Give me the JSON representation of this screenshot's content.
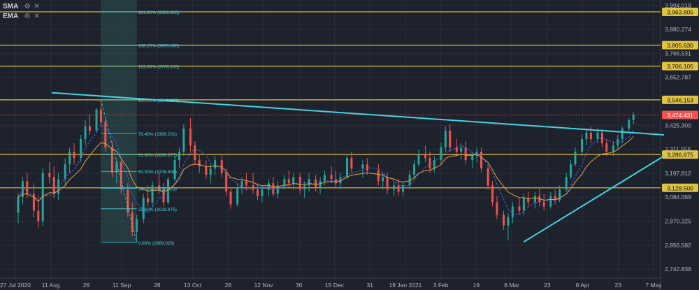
{
  "legend": {
    "items": [
      {
        "name": "SMA",
        "controls": "⚙ ✕"
      },
      {
        "name": "EMA",
        "controls": "⚙ ✕"
      }
    ]
  },
  "chart_data": {
    "type": "candlestick",
    "instrument_price_axis": "right",
    "ylim": [
      2700,
      4020
    ],
    "y_ticks": [
      "3,994.018",
      "3,880.274",
      "3,766.531",
      "3,652.787",
      "3,425.300",
      "3,311.556",
      "3,197.812",
      "3,084.069",
      "2,970.325",
      "2,856.582",
      "2,742.838"
    ],
    "x_ticks": [
      "27 Jul 2020",
      "11 Aug",
      "26",
      "11 Sep",
      "28",
      "13 Oct",
      "28",
      "12 Nov",
      "30",
      "15 Dec",
      "31",
      "19 Jan 2021",
      "3 Feb",
      "19",
      "8 Mar",
      "23",
      "8 Apr",
      "23",
      "7 May"
    ],
    "dates_range": [
      "2020-07-27",
      "2021-05-07"
    ],
    "colors": {
      "up": "#26a69a",
      "down": "#ef5350",
      "level": "#e0c341",
      "trend": "#44d3e0",
      "sma": "#4b5fd8",
      "ema": "#e0a040",
      "fib": "#44d3e0"
    },
    "horizontal_levels": [
      {
        "value": 3963.805,
        "label": "3,963.805"
      },
      {
        "value": 3805.63,
        "label": "3,805.630"
      },
      {
        "value": 3706.105,
        "label": "3,706.105"
      },
      {
        "value": 3546.153,
        "label": "3,546.153"
      },
      {
        "value": 3286.675,
        "label": "3,286.675"
      },
      {
        "value": 3128.5,
        "label": "3,128.500"
      }
    ],
    "current_price": {
      "value": 3474.431,
      "label": "3,474.431"
    },
    "fibonacci": [
      {
        "label": "161.80% (3963.805)",
        "value": 3963.805
      },
      {
        "label": "138.20% (3805.630)",
        "value": 3805.63
      },
      {
        "label": "123.60% (3706.105)",
        "value": 3706.105
      },
      {
        "label": "100.00% (3546.153)",
        "value": 3546.153
      },
      {
        "label": "76.40% (3386.201)",
        "value": 3386.201
      },
      {
        "label": "61.80% (3286.675)",
        "value": 3286.675
      },
      {
        "label": "50.00% (3206.699)",
        "value": 3206.699
      },
      {
        "label": "38.20% (3126.723)",
        "value": 3126.723
      },
      {
        "label": "23.60% (3028.975)",
        "value": 3028.975
      },
      {
        "label": "0.00% (2869.023)",
        "value": 2869.023
      }
    ],
    "trendlines": [
      {
        "from": [
          "2020-08-11",
          3580
        ],
        "to": [
          "2021-05-07",
          3380
        ]
      },
      {
        "from": [
          "2021-03-10",
          2872
        ],
        "to": [
          "2021-05-07",
          3280
        ]
      }
    ],
    "candles": [
      {
        "d": "2020-07-27",
        "o": 3010,
        "h": 3100,
        "l": 2960,
        "c": 3085
      },
      {
        "d": "2020-07-29",
        "o": 3085,
        "h": 3180,
        "l": 3050,
        "c": 3160
      },
      {
        "d": "2020-07-31",
        "o": 3160,
        "h": 3200,
        "l": 3080,
        "c": 3100
      },
      {
        "d": "2020-08-03",
        "o": 3100,
        "h": 3150,
        "l": 2990,
        "c": 3020
      },
      {
        "d": "2020-08-05",
        "o": 3020,
        "h": 3090,
        "l": 2940,
        "c": 2970
      },
      {
        "d": "2020-08-07",
        "o": 2970,
        "h": 3220,
        "l": 2950,
        "c": 3200
      },
      {
        "d": "2020-08-10",
        "o": 3200,
        "h": 3250,
        "l": 3150,
        "c": 3180
      },
      {
        "d": "2020-08-12",
        "o": 3180,
        "h": 3230,
        "l": 3080,
        "c": 3100
      },
      {
        "d": "2020-08-14",
        "o": 3100,
        "h": 3200,
        "l": 3070,
        "c": 3170
      },
      {
        "d": "2020-08-17",
        "o": 3170,
        "h": 3270,
        "l": 3140,
        "c": 3240
      },
      {
        "d": "2020-08-19",
        "o": 3240,
        "h": 3320,
        "l": 3200,
        "c": 3300
      },
      {
        "d": "2020-08-21",
        "o": 3300,
        "h": 3340,
        "l": 3240,
        "c": 3270
      },
      {
        "d": "2020-08-24",
        "o": 3270,
        "h": 3380,
        "l": 3250,
        "c": 3360
      },
      {
        "d": "2020-08-26",
        "o": 3360,
        "h": 3450,
        "l": 3330,
        "c": 3420
      },
      {
        "d": "2020-08-28",
        "o": 3420,
        "h": 3480,
        "l": 3380,
        "c": 3400
      },
      {
        "d": "2020-08-31",
        "o": 3400,
        "h": 3510,
        "l": 3390,
        "c": 3500
      },
      {
        "d": "2020-09-02",
        "o": 3500,
        "h": 3546,
        "l": 3420,
        "c": 3440
      },
      {
        "d": "2020-09-04",
        "o": 3440,
        "h": 3460,
        "l": 3300,
        "c": 3320
      },
      {
        "d": "2020-09-07",
        "o": 3320,
        "h": 3350,
        "l": 3180,
        "c": 3200
      },
      {
        "d": "2020-09-09",
        "o": 3200,
        "h": 3270,
        "l": 3150,
        "c": 3250
      },
      {
        "d": "2020-09-11",
        "o": 3250,
        "h": 3260,
        "l": 3100,
        "c": 3120
      },
      {
        "d": "2020-09-14",
        "o": 3120,
        "h": 3150,
        "l": 2990,
        "c": 3010
      },
      {
        "d": "2020-09-16",
        "o": 3010,
        "h": 3060,
        "l": 2900,
        "c": 2920
      },
      {
        "d": "2020-09-18",
        "o": 2920,
        "h": 3000,
        "l": 2869,
        "c": 2980
      },
      {
        "d": "2020-09-21",
        "o": 2980,
        "h": 3100,
        "l": 2960,
        "c": 3080
      },
      {
        "d": "2020-09-23",
        "o": 3080,
        "h": 3140,
        "l": 3040,
        "c": 3060
      },
      {
        "d": "2020-09-25",
        "o": 3060,
        "h": 3160,
        "l": 3040,
        "c": 3140
      },
      {
        "d": "2020-09-28",
        "o": 3140,
        "h": 3200,
        "l": 3100,
        "c": 3120
      },
      {
        "d": "2020-09-30",
        "o": 3120,
        "h": 3150,
        "l": 3040,
        "c": 3060
      },
      {
        "d": "2020-10-02",
        "o": 3060,
        "h": 3180,
        "l": 3050,
        "c": 3170
      },
      {
        "d": "2020-10-05",
        "o": 3170,
        "h": 3280,
        "l": 3160,
        "c": 3260
      },
      {
        "d": "2020-10-07",
        "o": 3260,
        "h": 3320,
        "l": 3220,
        "c": 3300
      },
      {
        "d": "2020-10-09",
        "o": 3300,
        "h": 3430,
        "l": 3280,
        "c": 3410
      },
      {
        "d": "2020-10-12",
        "o": 3410,
        "h": 3460,
        "l": 3300,
        "c": 3330
      },
      {
        "d": "2020-10-14",
        "o": 3330,
        "h": 3350,
        "l": 3240,
        "c": 3260
      },
      {
        "d": "2020-10-16",
        "o": 3260,
        "h": 3290,
        "l": 3200,
        "c": 3230
      },
      {
        "d": "2020-10-19",
        "o": 3230,
        "h": 3260,
        "l": 3170,
        "c": 3190
      },
      {
        "d": "2020-10-21",
        "o": 3190,
        "h": 3240,
        "l": 3150,
        "c": 3220
      },
      {
        "d": "2020-10-23",
        "o": 3220,
        "h": 3280,
        "l": 3190,
        "c": 3260
      },
      {
        "d": "2020-10-26",
        "o": 3260,
        "h": 3290,
        "l": 3180,
        "c": 3200
      },
      {
        "d": "2020-10-28",
        "o": 3200,
        "h": 3220,
        "l": 3090,
        "c": 3110
      },
      {
        "d": "2020-10-30",
        "o": 3110,
        "h": 3130,
        "l": 3030,
        "c": 3050
      },
      {
        "d": "2020-11-02",
        "o": 3050,
        "h": 3150,
        "l": 3040,
        "c": 3130
      },
      {
        "d": "2020-11-04",
        "o": 3130,
        "h": 3180,
        "l": 3100,
        "c": 3160
      },
      {
        "d": "2020-11-06",
        "o": 3160,
        "h": 3200,
        "l": 3120,
        "c": 3140
      },
      {
        "d": "2020-11-09",
        "o": 3140,
        "h": 3200,
        "l": 3100,
        "c": 3120
      },
      {
        "d": "2020-11-11",
        "o": 3120,
        "h": 3150,
        "l": 3070,
        "c": 3090
      },
      {
        "d": "2020-11-13",
        "o": 3090,
        "h": 3140,
        "l": 3060,
        "c": 3120
      },
      {
        "d": "2020-11-16",
        "o": 3120,
        "h": 3170,
        "l": 3090,
        "c": 3150
      },
      {
        "d": "2020-11-18",
        "o": 3150,
        "h": 3180,
        "l": 3090,
        "c": 3100
      },
      {
        "d": "2020-11-20",
        "o": 3100,
        "h": 3160,
        "l": 3080,
        "c": 3140
      },
      {
        "d": "2020-11-23",
        "o": 3140,
        "h": 3190,
        "l": 3120,
        "c": 3170
      },
      {
        "d": "2020-11-25",
        "o": 3170,
        "h": 3210,
        "l": 3130,
        "c": 3150
      },
      {
        "d": "2020-11-27",
        "o": 3150,
        "h": 3200,
        "l": 3120,
        "c": 3180
      },
      {
        "d": "2020-11-30",
        "o": 3180,
        "h": 3200,
        "l": 3100,
        "c": 3120
      },
      {
        "d": "2020-12-02",
        "o": 3120,
        "h": 3160,
        "l": 3080,
        "c": 3140
      },
      {
        "d": "2020-12-04",
        "o": 3140,
        "h": 3200,
        "l": 3110,
        "c": 3170
      },
      {
        "d": "2020-12-07",
        "o": 3170,
        "h": 3190,
        "l": 3110,
        "c": 3130
      },
      {
        "d": "2020-12-09",
        "o": 3130,
        "h": 3180,
        "l": 3100,
        "c": 3160
      },
      {
        "d": "2020-12-11",
        "o": 3160,
        "h": 3210,
        "l": 3140,
        "c": 3190
      },
      {
        "d": "2020-12-14",
        "o": 3190,
        "h": 3230,
        "l": 3150,
        "c": 3170
      },
      {
        "d": "2020-12-16",
        "o": 3170,
        "h": 3210,
        "l": 3130,
        "c": 3150
      },
      {
        "d": "2020-12-18",
        "o": 3150,
        "h": 3200,
        "l": 3120,
        "c": 3180
      },
      {
        "d": "2020-12-21",
        "o": 3180,
        "h": 3290,
        "l": 3170,
        "c": 3270
      },
      {
        "d": "2020-12-23",
        "o": 3270,
        "h": 3300,
        "l": 3200,
        "c": 3220
      },
      {
        "d": "2020-12-28",
        "o": 3220,
        "h": 3260,
        "l": 3180,
        "c": 3240
      },
      {
        "d": "2020-12-30",
        "o": 3240,
        "h": 3270,
        "l": 3190,
        "c": 3210
      },
      {
        "d": "2021-01-04",
        "o": 3210,
        "h": 3240,
        "l": 3140,
        "c": 3160
      },
      {
        "d": "2021-01-06",
        "o": 3160,
        "h": 3200,
        "l": 3120,
        "c": 3180
      },
      {
        "d": "2021-01-08",
        "o": 3180,
        "h": 3200,
        "l": 3100,
        "c": 3120
      },
      {
        "d": "2021-01-11",
        "o": 3120,
        "h": 3160,
        "l": 3090,
        "c": 3140
      },
      {
        "d": "2021-01-13",
        "o": 3140,
        "h": 3170,
        "l": 3090,
        "c": 3110
      },
      {
        "d": "2021-01-15",
        "o": 3110,
        "h": 3160,
        "l": 3090,
        "c": 3140
      },
      {
        "d": "2021-01-18",
        "o": 3140,
        "h": 3210,
        "l": 3120,
        "c": 3190
      },
      {
        "d": "2021-01-20",
        "o": 3190,
        "h": 3260,
        "l": 3170,
        "c": 3240
      },
      {
        "d": "2021-01-22",
        "o": 3240,
        "h": 3310,
        "l": 3230,
        "c": 3290
      },
      {
        "d": "2021-01-25",
        "o": 3290,
        "h": 3330,
        "l": 3250,
        "c": 3270
      },
      {
        "d": "2021-01-27",
        "o": 3270,
        "h": 3300,
        "l": 3200,
        "c": 3220
      },
      {
        "d": "2021-01-29",
        "o": 3220,
        "h": 3280,
        "l": 3200,
        "c": 3260
      },
      {
        "d": "2021-02-01",
        "o": 3260,
        "h": 3340,
        "l": 3240,
        "c": 3320
      },
      {
        "d": "2021-02-03",
        "o": 3320,
        "h": 3420,
        "l": 3300,
        "c": 3400
      },
      {
        "d": "2021-02-05",
        "o": 3400,
        "h": 3430,
        "l": 3300,
        "c": 3320
      },
      {
        "d": "2021-02-08",
        "o": 3320,
        "h": 3360,
        "l": 3280,
        "c": 3300
      },
      {
        "d": "2021-02-10",
        "o": 3300,
        "h": 3340,
        "l": 3260,
        "c": 3320
      },
      {
        "d": "2021-02-12",
        "o": 3320,
        "h": 3350,
        "l": 3240,
        "c": 3260
      },
      {
        "d": "2021-02-15",
        "o": 3260,
        "h": 3300,
        "l": 3220,
        "c": 3280
      },
      {
        "d": "2021-02-17",
        "o": 3280,
        "h": 3320,
        "l": 3250,
        "c": 3300
      },
      {
        "d": "2021-02-19",
        "o": 3300,
        "h": 3320,
        "l": 3200,
        "c": 3220
      },
      {
        "d": "2021-02-22",
        "o": 3220,
        "h": 3240,
        "l": 3120,
        "c": 3140
      },
      {
        "d": "2021-02-24",
        "o": 3140,
        "h": 3160,
        "l": 3040,
        "c": 3060
      },
      {
        "d": "2021-02-26",
        "o": 3060,
        "h": 3090,
        "l": 2980,
        "c": 3000
      },
      {
        "d": "2021-03-01",
        "o": 3000,
        "h": 3020,
        "l": 2930,
        "c": 2950
      },
      {
        "d": "2021-03-03",
        "o": 2950,
        "h": 3010,
        "l": 2880,
        "c": 2990
      },
      {
        "d": "2021-03-05",
        "o": 2990,
        "h": 3060,
        "l": 2960,
        "c": 3040
      },
      {
        "d": "2021-03-08",
        "o": 3040,
        "h": 3080,
        "l": 3000,
        "c": 3020
      },
      {
        "d": "2021-03-10",
        "o": 3020,
        "h": 3100,
        "l": 3000,
        "c": 3080
      },
      {
        "d": "2021-03-12",
        "o": 3080,
        "h": 3110,
        "l": 3040,
        "c": 3060
      },
      {
        "d": "2021-03-15",
        "o": 3060,
        "h": 3110,
        "l": 3030,
        "c": 3090
      },
      {
        "d": "2021-03-17",
        "o": 3090,
        "h": 3130,
        "l": 3040,
        "c": 3060
      },
      {
        "d": "2021-03-19",
        "o": 3060,
        "h": 3100,
        "l": 3020,
        "c": 3040
      },
      {
        "d": "2021-03-22",
        "o": 3040,
        "h": 3110,
        "l": 3030,
        "c": 3090
      },
      {
        "d": "2021-03-24",
        "o": 3090,
        "h": 3120,
        "l": 3050,
        "c": 3070
      },
      {
        "d": "2021-03-26",
        "o": 3070,
        "h": 3140,
        "l": 3060,
        "c": 3120
      },
      {
        "d": "2021-03-29",
        "o": 3120,
        "h": 3200,
        "l": 3110,
        "c": 3180
      },
      {
        "d": "2021-03-31",
        "o": 3180,
        "h": 3260,
        "l": 3170,
        "c": 3240
      },
      {
        "d": "2021-04-02",
        "o": 3240,
        "h": 3320,
        "l": 3230,
        "c": 3300
      },
      {
        "d": "2021-04-05",
        "o": 3300,
        "h": 3380,
        "l": 3280,
        "c": 3360
      },
      {
        "d": "2021-04-07",
        "o": 3360,
        "h": 3410,
        "l": 3330,
        "c": 3390
      },
      {
        "d": "2021-04-09",
        "o": 3390,
        "h": 3420,
        "l": 3340,
        "c": 3360
      },
      {
        "d": "2021-04-12",
        "o": 3360,
        "h": 3410,
        "l": 3340,
        "c": 3390
      },
      {
        "d": "2021-04-14",
        "o": 3390,
        "h": 3410,
        "l": 3320,
        "c": 3340
      },
      {
        "d": "2021-04-16",
        "o": 3340,
        "h": 3360,
        "l": 3280,
        "c": 3300
      },
      {
        "d": "2021-04-19",
        "o": 3300,
        "h": 3350,
        "l": 3280,
        "c": 3330
      },
      {
        "d": "2021-04-21",
        "o": 3330,
        "h": 3380,
        "l": 3310,
        "c": 3360
      },
      {
        "d": "2021-04-23",
        "o": 3360,
        "h": 3420,
        "l": 3340,
        "c": 3410
      },
      {
        "d": "2021-04-26",
        "o": 3410,
        "h": 3460,
        "l": 3390,
        "c": 3450
      },
      {
        "d": "2021-04-28",
        "o": 3450,
        "h": 3490,
        "l": 3430,
        "c": 3474
      }
    ]
  }
}
